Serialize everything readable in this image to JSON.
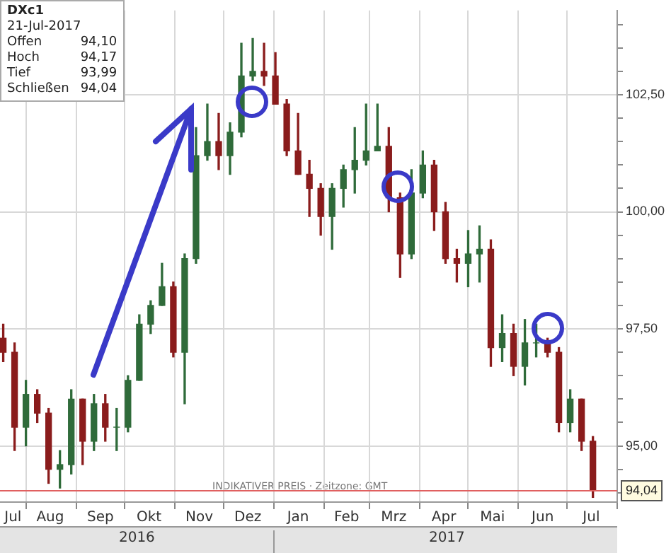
{
  "chart_data": {
    "type": "candlestick",
    "title": "DXc1",
    "subtitle": "21-Jul-2017",
    "annotations": [
      "Offen 94,10",
      "Hoch 94,17",
      "Tief 93,99",
      "Schließen 94,04",
      "INDIKATIVER PREIS · Zeitzone: GMT",
      "2016",
      "2017"
    ],
    "x": [
      "2016-07-18",
      "2016-07-25",
      "2016-08-01",
      "2016-08-08",
      "2016-08-15",
      "2016-08-22",
      "2016-08-29",
      "2016-09-05",
      "2016-09-12",
      "2016-09-19",
      "2016-09-26",
      "2016-10-03",
      "2016-10-10",
      "2016-10-17",
      "2016-10-24",
      "2016-10-31",
      "2016-11-07",
      "2016-11-14",
      "2016-11-21",
      "2016-11-28",
      "2016-12-05",
      "2016-12-12",
      "2016-12-19",
      "2016-12-26",
      "2017-01-02",
      "2017-01-09",
      "2017-01-16",
      "2017-01-23",
      "2017-01-30",
      "2017-02-06",
      "2017-02-13",
      "2017-02-20",
      "2017-02-27",
      "2017-03-06",
      "2017-03-13",
      "2017-03-20",
      "2017-03-27",
      "2017-04-03",
      "2017-04-10",
      "2017-04-17",
      "2017-04-24",
      "2017-05-01",
      "2017-05-08",
      "2017-05-15",
      "2017-05-22",
      "2017-05-29",
      "2017-06-05",
      "2017-06-12",
      "2017-06-19",
      "2017-06-26",
      "2017-07-03",
      "2017-07-10",
      "2017-07-17"
    ],
    "ohlc": [
      [
        97.3,
        97.6,
        96.8,
        97.0
      ],
      [
        97.0,
        97.2,
        94.9,
        95.4
      ],
      [
        95.4,
        96.4,
        95.0,
        96.1
      ],
      [
        96.1,
        96.2,
        95.5,
        95.7
      ],
      [
        95.7,
        95.8,
        94.2,
        94.5
      ],
      [
        94.5,
        94.9,
        94.1,
        94.6
      ],
      [
        94.6,
        96.2,
        94.4,
        96.0
      ],
      [
        96.0,
        96.0,
        94.6,
        95.1
      ],
      [
        95.1,
        96.1,
        94.9,
        95.9
      ],
      [
        95.9,
        96.1,
        95.1,
        95.4
      ],
      [
        95.4,
        95.8,
        94.9,
        95.4
      ],
      [
        95.4,
        96.5,
        95.3,
        96.4
      ],
      [
        96.4,
        97.8,
        96.4,
        97.6
      ],
      [
        97.6,
        98.1,
        97.4,
        98.0
      ],
      [
        98.0,
        98.9,
        98.0,
        98.4
      ],
      [
        98.4,
        98.5,
        96.9,
        97.0
      ],
      [
        97.0,
        99.1,
        95.9,
        99.0
      ],
      [
        99.0,
        101.8,
        98.9,
        101.2
      ],
      [
        101.2,
        102.3,
        101.1,
        101.5
      ],
      [
        101.5,
        102.1,
        100.9,
        101.2
      ],
      [
        101.2,
        101.9,
        100.8,
        101.7
      ],
      [
        101.7,
        103.6,
        101.6,
        102.9
      ],
      [
        102.9,
        103.7,
        102.8,
        103.0
      ],
      [
        103.0,
        103.6,
        102.7,
        102.9
      ],
      [
        102.9,
        103.4,
        102.3,
        102.3
      ],
      [
        102.3,
        102.4,
        101.2,
        101.3
      ],
      [
        101.3,
        102.1,
        100.8,
        100.8
      ],
      [
        100.8,
        101.1,
        99.9,
        100.5
      ],
      [
        100.5,
        100.6,
        99.5,
        99.9
      ],
      [
        99.9,
        100.6,
        99.2,
        100.5
      ],
      [
        100.5,
        101.0,
        100.1,
        100.9
      ],
      [
        100.9,
        101.8,
        100.4,
        101.1
      ],
      [
        101.1,
        102.3,
        101.0,
        101.3
      ],
      [
        101.3,
        102.3,
        101.3,
        101.4
      ],
      [
        101.4,
        101.8,
        100.0,
        100.3
      ],
      [
        100.3,
        100.4,
        98.6,
        99.1
      ],
      [
        99.1,
        100.9,
        99.0,
        100.4
      ],
      [
        100.4,
        101.3,
        100.3,
        101.0
      ],
      [
        101.0,
        101.1,
        99.6,
        100.0
      ],
      [
        100.0,
        100.2,
        98.9,
        99.0
      ],
      [
        99.0,
        99.2,
        98.5,
        98.9
      ],
      [
        98.9,
        99.6,
        98.4,
        99.1
      ],
      [
        99.1,
        99.7,
        98.5,
        99.2
      ],
      [
        99.2,
        99.4,
        96.7,
        97.1
      ],
      [
        97.1,
        97.8,
        96.8,
        97.4
      ],
      [
        97.4,
        97.6,
        96.5,
        96.7
      ],
      [
        96.7,
        97.7,
        96.3,
        97.2
      ],
      [
        97.2,
        97.6,
        96.9,
        97.2
      ],
      [
        97.2,
        97.3,
        96.9,
        97.0
      ],
      [
        97.0,
        97.1,
        95.3,
        95.5
      ],
      [
        95.5,
        96.2,
        95.3,
        96.0
      ],
      [
        96.0,
        96.0,
        94.9,
        95.1
      ],
      [
        95.1,
        95.2,
        93.9,
        94.04
      ]
    ],
    "xlim": [
      "2016-07-16",
      "2017-08-01"
    ],
    "xticks": [
      {
        "value": "2016-07-24",
        "label": "Jul"
      },
      {
        "value": "2016-08-01",
        "label": null
      },
      {
        "value": "2016-08-16",
        "label": "Aug"
      },
      {
        "value": "2016-09-01",
        "label": null
      },
      {
        "value": "2016-09-16",
        "label": "Sep"
      },
      {
        "value": "2016-10-01",
        "label": null
      },
      {
        "value": "2016-10-16",
        "label": "Okt"
      },
      {
        "value": "2016-11-01",
        "label": null
      },
      {
        "value": "2016-11-16",
        "label": "Nov"
      },
      {
        "value": "2016-12-01",
        "label": null
      },
      {
        "value": "2016-12-16",
        "label": "Dez"
      },
      {
        "value": "2017-01-01",
        "label": null
      },
      {
        "value": "2017-01-16",
        "label": "Jan"
      },
      {
        "value": "2017-02-01",
        "label": null
      },
      {
        "value": "2017-02-15",
        "label": "Feb"
      },
      {
        "value": "2017-03-01",
        "label": null
      },
      {
        "value": "2017-03-16",
        "label": "Mrz"
      },
      {
        "value": "2017-04-01",
        "label": null
      },
      {
        "value": "2017-04-16",
        "label": "Apr"
      },
      {
        "value": "2017-05-01",
        "label": null
      },
      {
        "value": "2017-05-16",
        "label": "Mai"
      },
      {
        "value": "2017-06-01",
        "label": null
      },
      {
        "value": "2017-06-16",
        "label": "Jun"
      },
      {
        "value": "2017-07-01",
        "label": null
      },
      {
        "value": "2017-07-16",
        "label": "Jul"
      },
      {
        "value": "2017-08-01",
        "label": null
      }
    ],
    "ylim": [
      93.8,
      104.3
    ],
    "yticks": [
      {
        "value": 94,
        "label": null
      },
      {
        "value": 94.5,
        "label": null
      },
      {
        "value": 95,
        "label": "95,00"
      },
      {
        "value": 95.5,
        "label": null
      },
      {
        "value": 96,
        "label": null
      },
      {
        "value": 96.5,
        "label": null
      },
      {
        "value": 97,
        "label": null
      },
      {
        "value": 97.5,
        "label": "97,50"
      },
      {
        "value": 98,
        "label": null
      },
      {
        "value": 98.5,
        "label": null
      },
      {
        "value": 99,
        "label": null
      },
      {
        "value": 99.5,
        "label": null
      },
      {
        "value": 100,
        "label": "100,00"
      },
      {
        "value": 100.5,
        "label": null
      },
      {
        "value": 101,
        "label": null
      },
      {
        "value": 101.5,
        "label": null
      },
      {
        "value": 102,
        "label": null
      },
      {
        "value": 102.5,
        "label": "102,50"
      },
      {
        "value": 103,
        "label": null
      },
      {
        "value": 103.5,
        "label": null
      },
      {
        "value": 104,
        "label": null
      }
    ],
    "ref_lines": [
      {
        "axis": "y",
        "value": 94.04,
        "label": "94,04",
        "color": "#e06060"
      }
    ],
    "grid": true,
    "legend": false
  }
}
